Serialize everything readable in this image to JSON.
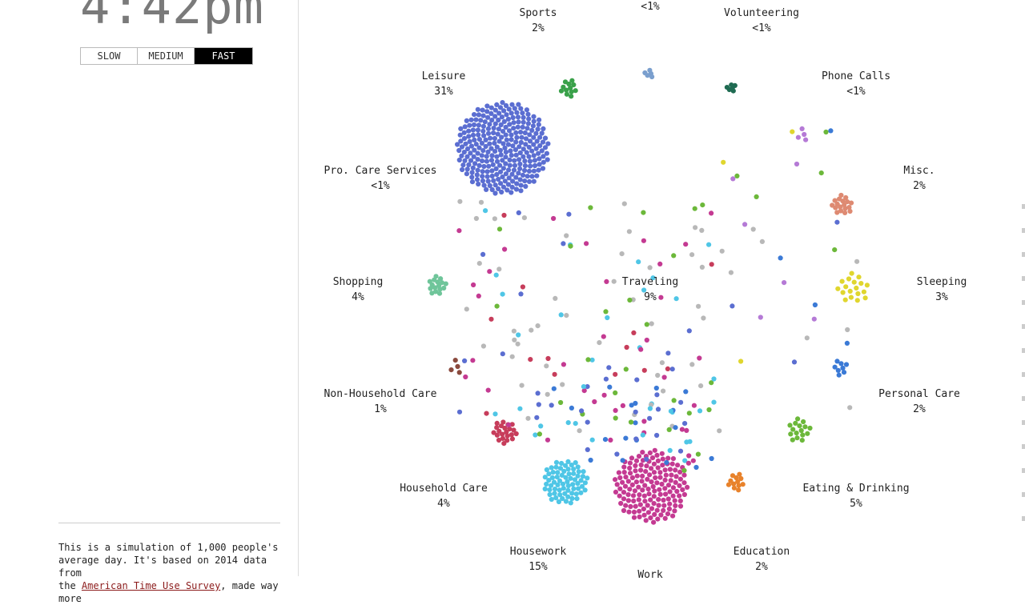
{
  "clock": {
    "time": "4:42pm"
  },
  "speed": {
    "buttons": [
      "SLOW",
      "MEDIUM",
      "FAST"
    ],
    "active": "FAST"
  },
  "description": {
    "line1": "This is a simulation of 1,000 people's",
    "line2": "average day. It's based on 2014 data from",
    "line3_prefix": "the ",
    "link": "American Time Use Survey",
    "line3_suffix": ", made way more"
  },
  "activities": [
    {
      "id": "sports",
      "name": "Sports",
      "pct": "2%",
      "color": "#3aa14a"
    },
    {
      "id": "volunteering",
      "name": "Volunteering",
      "pct": "<1%",
      "color": "#1f6b52"
    },
    {
      "id": "religious",
      "name": "",
      "pct": "<1%",
      "color": "#7a9fce"
    },
    {
      "id": "leisure",
      "name": "Leisure",
      "pct": "31%",
      "color": "#5b6ed1"
    },
    {
      "id": "phone-calls",
      "name": "Phone Calls",
      "pct": "<1%",
      "color": "#b57ad6"
    },
    {
      "id": "pro-care",
      "name": "Pro. Care Services",
      "pct": "<1%",
      "color": "#b57ad6"
    },
    {
      "id": "misc",
      "name": "Misc.",
      "pct": "2%",
      "color": "#de8a72"
    },
    {
      "id": "shopping",
      "name": "Shopping",
      "pct": "4%",
      "color": "#6fc59a"
    },
    {
      "id": "traveling",
      "name": "Traveling",
      "pct": "9%",
      "color": "#b8b8b8"
    },
    {
      "id": "sleeping",
      "name": "Sleeping",
      "pct": "3%",
      "color": "#e0d62e"
    },
    {
      "id": "non-household-care",
      "name": "Non-Household Care",
      "pct": "1%",
      "color": "#8b4a3e"
    },
    {
      "id": "personal-care",
      "name": "Personal Care",
      "pct": "2%",
      "color": "#3b7ad6"
    },
    {
      "id": "household-care",
      "name": "Household Care",
      "pct": "4%",
      "color": "#c73d5b"
    },
    {
      "id": "eating-drinking",
      "name": "Eating & Drinking",
      "pct": "5%",
      "color": "#6cb83a"
    },
    {
      "id": "housework",
      "name": "Housework",
      "pct": "15%",
      "color": "#4fc6e6"
    },
    {
      "id": "education",
      "name": "Education",
      "pct": "2%",
      "color": "#e8822b"
    },
    {
      "id": "work",
      "name": "Work",
      "pct": "",
      "color": "#c43a92"
    }
  ]
}
